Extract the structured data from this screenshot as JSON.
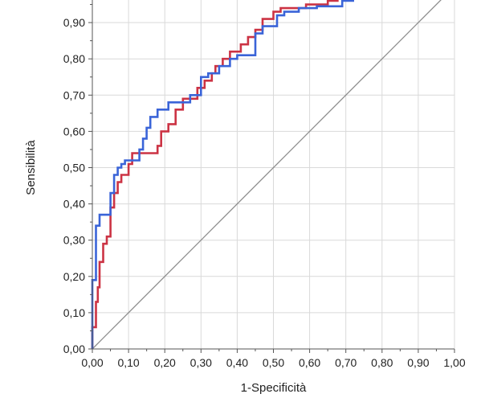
{
  "chart_data": {
    "type": "line",
    "xlabel": "1-Specificità",
    "ylabel": "Sensibilità",
    "xlim": [
      0,
      1
    ],
    "ylim": [
      0,
      1
    ],
    "x_ticks": [
      "0,00",
      "0,10",
      "0,20",
      "0,30",
      "0,40",
      "0,50",
      "0,60",
      "0,70",
      "0,80",
      "0,90",
      "1,00"
    ],
    "y_ticks": [
      "0,00",
      "0,10",
      "0,20",
      "0,30",
      "0,40",
      "0,50",
      "0,60",
      "0,70",
      "0,80",
      "0,90"
    ],
    "grid": true,
    "colors": {
      "series_red": "#cc3344",
      "series_blue": "#3a64d8",
      "diagonal": "#8c8c8c",
      "grid": "#d9d9d9"
    },
    "series": [
      {
        "color": "#cc3344",
        "points": [
          [
            0.0,
            0.0
          ],
          [
            0.0,
            0.06
          ],
          [
            0.01,
            0.06
          ],
          [
            0.01,
            0.13
          ],
          [
            0.015,
            0.13
          ],
          [
            0.015,
            0.17
          ],
          [
            0.02,
            0.17
          ],
          [
            0.02,
            0.24
          ],
          [
            0.03,
            0.24
          ],
          [
            0.03,
            0.29
          ],
          [
            0.04,
            0.29
          ],
          [
            0.04,
            0.31
          ],
          [
            0.05,
            0.31
          ],
          [
            0.05,
            0.39
          ],
          [
            0.06,
            0.39
          ],
          [
            0.06,
            0.43
          ],
          [
            0.07,
            0.43
          ],
          [
            0.07,
            0.46
          ],
          [
            0.08,
            0.46
          ],
          [
            0.08,
            0.48
          ],
          [
            0.1,
            0.48
          ],
          [
            0.1,
            0.51
          ],
          [
            0.11,
            0.51
          ],
          [
            0.11,
            0.54
          ],
          [
            0.18,
            0.54
          ],
          [
            0.18,
            0.56
          ],
          [
            0.19,
            0.56
          ],
          [
            0.19,
            0.6
          ],
          [
            0.21,
            0.6
          ],
          [
            0.21,
            0.62
          ],
          [
            0.23,
            0.62
          ],
          [
            0.23,
            0.66
          ],
          [
            0.25,
            0.66
          ],
          [
            0.25,
            0.69
          ],
          [
            0.29,
            0.69
          ],
          [
            0.29,
            0.72
          ],
          [
            0.31,
            0.72
          ],
          [
            0.31,
            0.74
          ],
          [
            0.33,
            0.74
          ],
          [
            0.33,
            0.76
          ],
          [
            0.34,
            0.76
          ],
          [
            0.34,
            0.78
          ],
          [
            0.36,
            0.78
          ],
          [
            0.36,
            0.8
          ],
          [
            0.38,
            0.8
          ],
          [
            0.38,
            0.82
          ],
          [
            0.41,
            0.82
          ],
          [
            0.41,
            0.84
          ],
          [
            0.43,
            0.84
          ],
          [
            0.43,
            0.86
          ],
          [
            0.45,
            0.86
          ],
          [
            0.45,
            0.88
          ],
          [
            0.47,
            0.88
          ],
          [
            0.47,
            0.91
          ],
          [
            0.5,
            0.91
          ],
          [
            0.5,
            0.93
          ],
          [
            0.52,
            0.93
          ],
          [
            0.52,
            0.94
          ],
          [
            0.59,
            0.94
          ],
          [
            0.59,
            0.95
          ],
          [
            0.65,
            0.95
          ],
          [
            0.65,
            0.96
          ],
          [
            0.68,
            0.96
          ]
        ]
      },
      {
        "color": "#3a64d8",
        "points": [
          [
            0.0,
            0.0
          ],
          [
            0.0,
            0.19
          ],
          [
            0.01,
            0.19
          ],
          [
            0.01,
            0.34
          ],
          [
            0.02,
            0.34
          ],
          [
            0.02,
            0.37
          ],
          [
            0.05,
            0.37
          ],
          [
            0.05,
            0.43
          ],
          [
            0.06,
            0.43
          ],
          [
            0.06,
            0.48
          ],
          [
            0.07,
            0.48
          ],
          [
            0.07,
            0.5
          ],
          [
            0.08,
            0.5
          ],
          [
            0.08,
            0.51
          ],
          [
            0.09,
            0.51
          ],
          [
            0.09,
            0.52
          ],
          [
            0.13,
            0.52
          ],
          [
            0.13,
            0.55
          ],
          [
            0.14,
            0.55
          ],
          [
            0.14,
            0.58
          ],
          [
            0.15,
            0.58
          ],
          [
            0.15,
            0.61
          ],
          [
            0.16,
            0.61
          ],
          [
            0.16,
            0.64
          ],
          [
            0.18,
            0.64
          ],
          [
            0.18,
            0.66
          ],
          [
            0.21,
            0.66
          ],
          [
            0.21,
            0.68
          ],
          [
            0.27,
            0.68
          ],
          [
            0.27,
            0.7
          ],
          [
            0.3,
            0.7
          ],
          [
            0.3,
            0.75
          ],
          [
            0.32,
            0.75
          ],
          [
            0.32,
            0.76
          ],
          [
            0.35,
            0.76
          ],
          [
            0.35,
            0.78
          ],
          [
            0.38,
            0.78
          ],
          [
            0.38,
            0.8
          ],
          [
            0.4,
            0.8
          ],
          [
            0.4,
            0.81
          ],
          [
            0.45,
            0.81
          ],
          [
            0.45,
            0.87
          ],
          [
            0.47,
            0.87
          ],
          [
            0.47,
            0.89
          ],
          [
            0.51,
            0.89
          ],
          [
            0.51,
            0.92
          ],
          [
            0.53,
            0.92
          ],
          [
            0.53,
            0.93
          ],
          [
            0.57,
            0.93
          ],
          [
            0.57,
            0.94
          ],
          [
            0.62,
            0.94
          ],
          [
            0.62,
            0.945
          ],
          [
            0.69,
            0.945
          ],
          [
            0.69,
            0.96
          ],
          [
            0.72,
            0.96
          ],
          [
            0.72,
            0.98
          ],
          [
            0.76,
            0.98
          ],
          [
            0.76,
            0.99
          ]
        ]
      }
    ]
  }
}
